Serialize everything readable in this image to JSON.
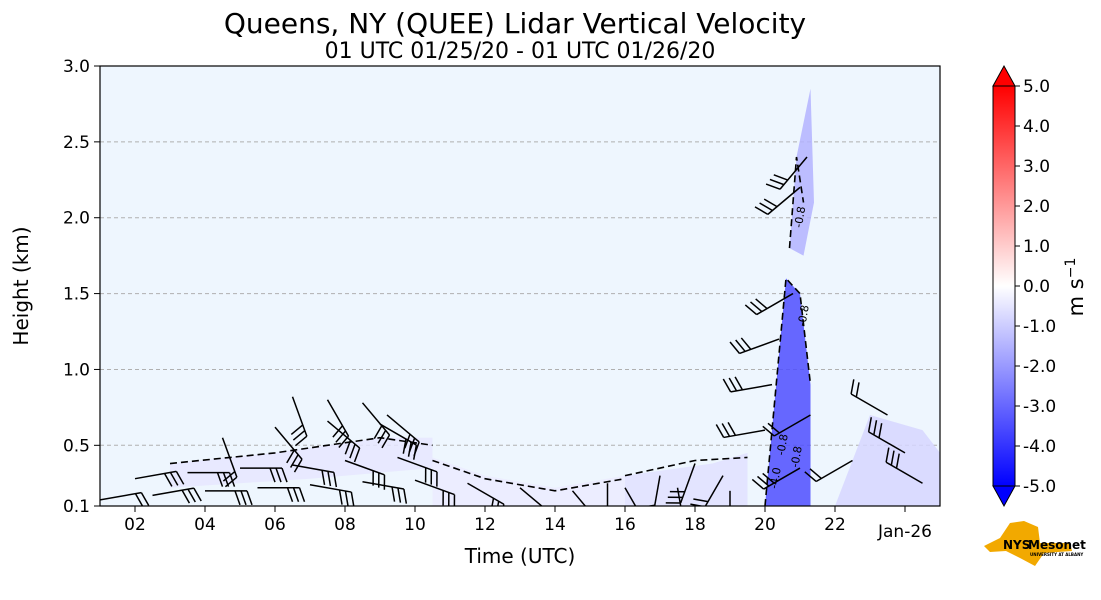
{
  "chart_data": {
    "type": "heatmap",
    "title": "Queens, NY (QUEE) Lidar Vertical Velocity",
    "subtitle": "01 UTC 01/25/20 - 01 UTC 01/26/20",
    "xlabel": "Time (UTC)",
    "ylabel": "Height (km)",
    "xlim": [
      1,
      25
    ],
    "ylim": [
      0.1,
      3.0
    ],
    "x_ticks": [
      {
        "value": 2,
        "label": "02"
      },
      {
        "value": 4,
        "label": "04"
      },
      {
        "value": 6,
        "label": "06"
      },
      {
        "value": 8,
        "label": "08"
      },
      {
        "value": 10,
        "label": "10"
      },
      {
        "value": 12,
        "label": "12"
      },
      {
        "value": 14,
        "label": "14"
      },
      {
        "value": 16,
        "label": "16"
      },
      {
        "value": 18,
        "label": "18"
      },
      {
        "value": 20,
        "label": "20"
      },
      {
        "value": 22,
        "label": "22"
      },
      {
        "value": 24,
        "label": "Jan-26"
      }
    ],
    "y_ticks": [
      {
        "value": 0.1,
        "label": "0.1"
      },
      {
        "value": 0.5,
        "label": "0.5"
      },
      {
        "value": 1.0,
        "label": "1.0"
      },
      {
        "value": 1.5,
        "label": "1.5"
      },
      {
        "value": 2.0,
        "label": "2.0"
      },
      {
        "value": 2.5,
        "label": "2.5"
      },
      {
        "value": 3.0,
        "label": "3.0"
      }
    ],
    "grid": "horizontal-dashed",
    "background_color": "#eef6fe",
    "colorbar": {
      "label": "m s",
      "label_exponent": "−1",
      "min": -5.0,
      "max": 5.0,
      "extend": "both",
      "ticks": [
        {
          "value": 5.0,
          "label": "5.0"
        },
        {
          "value": 4.0,
          "label": "4.0"
        },
        {
          "value": 3.0,
          "label": "3.0"
        },
        {
          "value": 2.0,
          "label": "2.0"
        },
        {
          "value": 1.0,
          "label": "1.0"
        },
        {
          "value": 0.0,
          "label": "0.0"
        },
        {
          "value": -1.0,
          "label": "-1.0"
        },
        {
          "value": -2.0,
          "label": "-2.0"
        },
        {
          "value": -3.0,
          "label": "-3.0"
        },
        {
          "value": -4.0,
          "label": "-4.0"
        },
        {
          "value": -5.0,
          "label": "-5.0"
        }
      ],
      "colors": [
        "#0000ff",
        "#ffffff",
        "#ff0000"
      ]
    },
    "velocity_regions": [
      {
        "name": "morning-low-layer",
        "x": [
          3.0,
          6.0,
          9.0,
          10.5,
          10.5,
          7.0,
          3.0
        ],
        "y": [
          0.38,
          0.45,
          0.55,
          0.55,
          0.35,
          0.28,
          0.22
        ],
        "value": -0.5
      },
      {
        "name": "midday-layer",
        "x": [
          10.5,
          12.0,
          14.0,
          16.0,
          16.0,
          12.0,
          10.5
        ],
        "y": [
          0.42,
          0.3,
          0.22,
          0.3,
          0.1,
          0.1,
          0.1
        ],
        "value": -0.4
      },
      {
        "name": "afternoon-layer",
        "x": [
          16.0,
          18.5,
          19.5,
          19.5,
          16.0
        ],
        "y": [
          0.3,
          0.38,
          0.45,
          0.1,
          0.1
        ],
        "value": -0.6
      },
      {
        "name": "convective-column",
        "x": [
          20.0,
          20.4,
          20.6,
          21.0,
          21.3,
          21.3,
          20.0
        ],
        "y": [
          0.1,
          1.1,
          1.6,
          1.5,
          0.9,
          0.1,
          0.1
        ],
        "value": -3.5
      },
      {
        "name": "upper-plume",
        "x": [
          20.7,
          20.9,
          21.3,
          21.4,
          21.1,
          20.7
        ],
        "y": [
          1.8,
          2.4,
          2.85,
          2.1,
          1.75,
          1.8
        ],
        "value": -1.5
      },
      {
        "name": "late-layer",
        "x": [
          22.0,
          23.0,
          24.5,
          25.0,
          25.0,
          22.0
        ],
        "y": [
          0.1,
          0.7,
          0.6,
          0.45,
          0.1,
          0.1
        ],
        "value": -0.8
      }
    ],
    "contour_labels": [
      {
        "x": 20.4,
        "y": 0.28,
        "text": "-4.0"
      },
      {
        "x": 20.6,
        "y": 0.5,
        "text": "-0.8"
      },
      {
        "x": 21.0,
        "y": 0.42,
        "text": "-0.8"
      },
      {
        "x": 21.2,
        "y": 1.35,
        "text": "-0.8"
      },
      {
        "x": 21.1,
        "y": 2.0,
        "text": "-0.8"
      }
    ],
    "wind_barbs": [
      {
        "x": 1.0,
        "y": 0.14,
        "dir": 8,
        "n": 2
      },
      {
        "x": 2.5,
        "y": 0.17,
        "dir": 8,
        "n": 3
      },
      {
        "x": 4.0,
        "y": 0.2,
        "dir": 9,
        "n": 3
      },
      {
        "x": 5.5,
        "y": 0.22,
        "dir": 9,
        "n": 3
      },
      {
        "x": 7.0,
        "y": 0.24,
        "dir": 10,
        "n": 3
      },
      {
        "x": 8.5,
        "y": 0.26,
        "dir": 10,
        "n": 3
      },
      {
        "x": 10.0,
        "y": 0.27,
        "dir": 11,
        "n": 3
      },
      {
        "x": 11.5,
        "y": 0.25,
        "dir": 12,
        "n": 3
      },
      {
        "x": 13.0,
        "y": 0.22,
        "dir": 13,
        "n": 3
      },
      {
        "x": 14.5,
        "y": 0.2,
        "dir": 14,
        "n": 3
      },
      {
        "x": 16.0,
        "y": 0.22,
        "dir": 15,
        "n": 3
      },
      {
        "x": 17.5,
        "y": 0.22,
        "dir": 17,
        "n": 3
      },
      {
        "x": 19.0,
        "y": 0.2,
        "dir": 18,
        "n": 3
      },
      {
        "x": 2.0,
        "y": 0.28,
        "dir": 8,
        "n": 3
      },
      {
        "x": 3.5,
        "y": 0.32,
        "dir": 9,
        "n": 3
      },
      {
        "x": 5.0,
        "y": 0.35,
        "dir": 9,
        "n": 3
      },
      {
        "x": 6.5,
        "y": 0.37,
        "dir": 10,
        "n": 3
      },
      {
        "x": 8.0,
        "y": 0.4,
        "dir": 11,
        "n": 3
      },
      {
        "x": 9.5,
        "y": 0.42,
        "dir": 11,
        "n": 3
      },
      {
        "x": 4.5,
        "y": 0.55,
        "dir": 16,
        "n": 2
      },
      {
        "x": 6.0,
        "y": 0.62,
        "dir": 14,
        "n": 3
      },
      {
        "x": 7.5,
        "y": 0.66,
        "dir": 13,
        "n": 3
      },
      {
        "x": 9.0,
        "y": 0.64,
        "dir": 12,
        "n": 3
      },
      {
        "x": 6.5,
        "y": 0.82,
        "dir": 16,
        "n": 3
      },
      {
        "x": 7.5,
        "y": 0.8,
        "dir": 15,
        "n": 3
      },
      {
        "x": 8.5,
        "y": 0.78,
        "dir": 14,
        "n": 3
      },
      {
        "x": 9.2,
        "y": 0.7,
        "dir": 13,
        "n": 3
      },
      {
        "x": 15.5,
        "y": 0.25,
        "dir": 18,
        "n": 3
      },
      {
        "x": 17.0,
        "y": 0.3,
        "dir": 19,
        "n": 3
      },
      {
        "x": 18.0,
        "y": 0.38,
        "dir": 20,
        "n": 3
      },
      {
        "x": 18.8,
        "y": 0.3,
        "dir": 21,
        "n": 3
      },
      {
        "x": 20.0,
        "y": 0.6,
        "dir": 26,
        "n": 3
      },
      {
        "x": 20.2,
        "y": 0.9,
        "dir": 26,
        "n": 3
      },
      {
        "x": 20.4,
        "y": 1.2,
        "dir": 25,
        "n": 3
      },
      {
        "x": 20.8,
        "y": 1.5,
        "dir": 24,
        "n": 3
      },
      {
        "x": 21.0,
        "y": 2.2,
        "dir": 23,
        "n": 3
      },
      {
        "x": 21.2,
        "y": 2.4,
        "dir": 22,
        "n": 3
      },
      {
        "x": 21.0,
        "y": 0.35,
        "dir": 24,
        "n": 3
      },
      {
        "x": 21.3,
        "y": 0.7,
        "dir": 24,
        "n": 2
      },
      {
        "x": 22.5,
        "y": 0.4,
        "dir": 24,
        "n": 2
      },
      {
        "x": 23.5,
        "y": 0.7,
        "dir": 30,
        "n": 2
      },
      {
        "x": 24.0,
        "y": 0.45,
        "dir": 30,
        "n": 3
      },
      {
        "x": 24.5,
        "y": 0.25,
        "dir": 30,
        "n": 3
      }
    ],
    "contour_lines": [
      {
        "x": [
          3.0,
          6.0,
          9.0,
          10.5
        ],
        "y": [
          0.38,
          0.45,
          0.55,
          0.5
        ]
      },
      {
        "x": [
          10.5,
          12.0,
          14.0,
          16.0
        ],
        "y": [
          0.4,
          0.28,
          0.2,
          0.28
        ]
      },
      {
        "x": [
          16.0,
          18.0,
          19.5
        ],
        "y": [
          0.3,
          0.4,
          0.42
        ]
      },
      {
        "x": [
          20.0,
          20.4,
          20.6,
          21.0,
          21.3
        ],
        "y": [
          0.1,
          1.1,
          1.6,
          1.5,
          0.9
        ]
      },
      {
        "x": [
          20.7,
          20.9,
          21.1
        ],
        "y": [
          1.8,
          2.4,
          2.1
        ]
      }
    ]
  },
  "logo": {
    "text": "NYS",
    "name": "Mesonet",
    "tagline": "UNIVERSITY AT ALBANY"
  }
}
